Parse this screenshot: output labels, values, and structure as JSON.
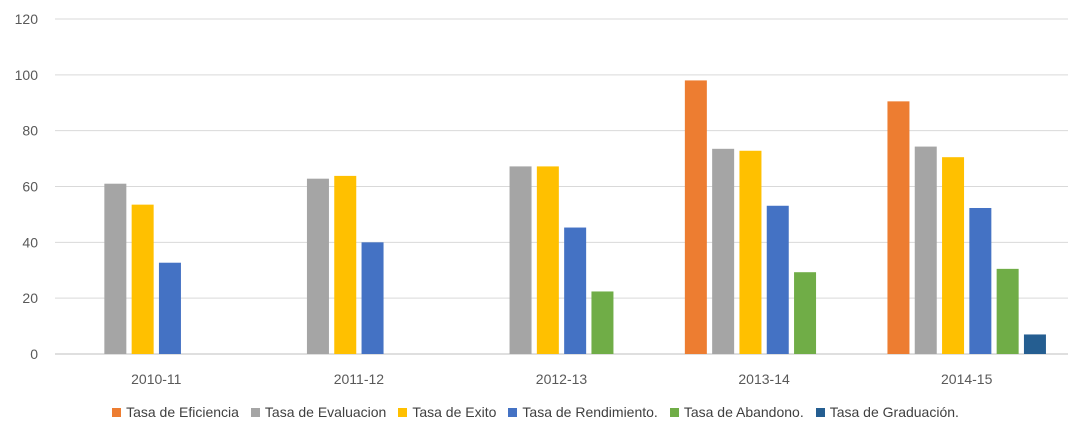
{
  "chart_data": {
    "type": "bar",
    "title": "",
    "xlabel": "",
    "ylabel": "",
    "ylim": [
      0,
      120
    ],
    "yticks": [
      0,
      20,
      40,
      60,
      80,
      100,
      120
    ],
    "grid": true,
    "legend_position": "bottom",
    "categories": [
      "2010-11",
      "2011-12",
      "2012-13",
      "2013-14",
      "2014-15"
    ],
    "series": [
      {
        "name": "Tasa de Eficiencia",
        "color": "#ED7D31",
        "values": [
          null,
          null,
          null,
          98,
          90.5
        ]
      },
      {
        "name": "Tasa de Evaluacion",
        "color": "#A5A5A5",
        "values": [
          61,
          62.8,
          67.2,
          73.5,
          74.3
        ]
      },
      {
        "name": "Tasa de Exito",
        "color": "#FFC000",
        "values": [
          53.5,
          63.8,
          67.2,
          72.8,
          70.5
        ]
      },
      {
        "name": "Tasa de Rendimiento.",
        "color": "#4472C4",
        "values": [
          32.7,
          40,
          45.3,
          53.1,
          52.3
        ]
      },
      {
        "name": "Tasa de Abandono.",
        "color": "#70AD47",
        "values": [
          null,
          null,
          22.4,
          29.3,
          30.5
        ]
      },
      {
        "name": "Tasa de Graduación.",
        "color": "#255E91",
        "values": [
          null,
          null,
          null,
          null,
          7
        ]
      }
    ]
  }
}
